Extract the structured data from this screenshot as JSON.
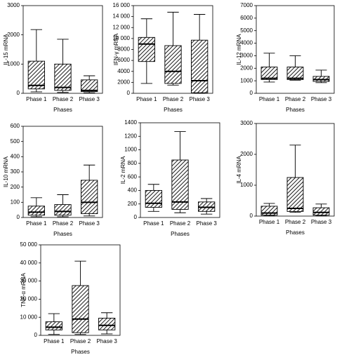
{
  "chart_data": [
    {
      "type": "box",
      "ylabel": "IL-15 mRNA",
      "xlabel": "Phases",
      "categories": [
        "Phase 1",
        "Phase 2",
        "Phase 3"
      ],
      "ylim": [
        0,
        3000
      ],
      "yticks": [
        0,
        1000,
        2000,
        3000
      ],
      "color": "#000000",
      "boxes": [
        {
          "low": 50,
          "q1": 150,
          "median": 270,
          "q3": 1100,
          "high": 2180
        },
        {
          "low": 30,
          "q1": 100,
          "median": 200,
          "q3": 1000,
          "high": 1850
        },
        {
          "low": 20,
          "q1": 60,
          "median": 100,
          "q3": 460,
          "high": 600
        }
      ]
    },
    {
      "type": "box",
      "ylabel": "IFN-γ mRNA",
      "xlabel": "Phases",
      "categories": [
        "Phase 1",
        "Phase 2",
        "Phase 3"
      ],
      "ylim": [
        0,
        16000
      ],
      "yticks": [
        0,
        2000,
        4000,
        6000,
        8000,
        {
          "value": 10000,
          "label": "10 000"
        },
        {
          "value": 12000,
          "label": "12 000"
        },
        {
          "value": 14000,
          "label": "14 000"
        },
        {
          "value": 16000,
          "label": "16 000"
        }
      ],
      "color": "#000000",
      "boxes": [
        {
          "low": 1800,
          "q1": 5800,
          "median": 9000,
          "q3": 10200,
          "high": 13600
        },
        {
          "low": 1500,
          "q1": 1800,
          "median": 4000,
          "q3": 8700,
          "high": 14800
        },
        {
          "low": 0,
          "q1": 100,
          "median": 2300,
          "q3": 9700,
          "high": 14400
        }
      ]
    },
    {
      "type": "box",
      "ylabel": "IL-12 mRNA",
      "xlabel": "Phases",
      "categories": [
        "Phase 1",
        "Phase 2",
        "Phase 3"
      ],
      "ylim": [
        0,
        7000
      ],
      "yticks": [
        0,
        1000,
        2000,
        3000,
        4000,
        5000,
        6000,
        7000
      ],
      "color": "#000000",
      "boxes": [
        {
          "low": 900,
          "q1": 1100,
          "median": 1200,
          "q3": 2100,
          "high": 3200
        },
        {
          "low": 1050,
          "q1": 1100,
          "median": 1200,
          "q3": 2100,
          "high": 3000
        },
        {
          "low": 850,
          "q1": 950,
          "median": 1100,
          "q3": 1350,
          "high": 1850
        }
      ]
    },
    {
      "type": "box",
      "ylabel": "IL-10 mRNA",
      "xlabel": "Phases",
      "categories": [
        "Phase 1",
        "Phase 2",
        "Phase 3"
      ],
      "ylim": [
        0,
        600
      ],
      "yticks": [
        0,
        100,
        200,
        300,
        400,
        500,
        600
      ],
      "color": "#000000",
      "boxes": [
        {
          "low": 5,
          "q1": 15,
          "median": 35,
          "q3": 75,
          "high": 130
        },
        {
          "low": 5,
          "q1": 15,
          "median": 40,
          "q3": 85,
          "high": 150
        },
        {
          "low": 10,
          "q1": 25,
          "median": 100,
          "q3": 245,
          "high": 345
        }
      ]
    },
    {
      "type": "box",
      "ylabel": "IL-2 mRNA",
      "xlabel": "Phases",
      "categories": [
        "Phase 1",
        "Phase 2",
        "Phase 3"
      ],
      "ylim": [
        0,
        1400
      ],
      "yticks": [
        0,
        200,
        400,
        600,
        800,
        1000,
        1200,
        1400
      ],
      "color": "#000000",
      "boxes": [
        {
          "low": 90,
          "q1": 150,
          "median": 210,
          "q3": 400,
          "high": 490
        },
        {
          "low": 70,
          "q1": 120,
          "median": 230,
          "q3": 850,
          "high": 1270
        },
        {
          "low": 50,
          "q1": 90,
          "median": 150,
          "q3": 230,
          "high": 280
        }
      ]
    },
    {
      "type": "box",
      "ylabel": "IL-4 mRNA",
      "xlabel": "Phases",
      "categories": [
        "Phase 1",
        "Phase 2",
        "Phase 3"
      ],
      "ylim": [
        0,
        3000
      ],
      "yticks": [
        0,
        1000,
        2000,
        3000
      ],
      "color": "#000000",
      "boxes": [
        {
          "low": 10,
          "q1": 30,
          "median": 100,
          "q3": 320,
          "high": 410
        },
        {
          "low": 120,
          "q1": 150,
          "median": 250,
          "q3": 1250,
          "high": 2300
        },
        {
          "low": 10,
          "q1": 30,
          "median": 120,
          "q3": 270,
          "high": 390
        }
      ]
    },
    {
      "type": "box",
      "ylabel": "TNF-α mRNA",
      "xlabel": "Phases",
      "categories": [
        "Phase 1",
        "Phase 2",
        "Phase 3"
      ],
      "ylim": [
        0,
        50000
      ],
      "yticks": [
        0,
        {
          "value": 10000,
          "label": "10 000"
        },
        {
          "value": 20000,
          "label": "20 000"
        },
        {
          "value": 30000,
          "label": "30 000"
        },
        {
          "value": 40000,
          "label": "40 000"
        },
        {
          "value": 50000,
          "label": "50 000"
        }
      ],
      "color": "#000000",
      "boxes": [
        {
          "low": 500,
          "q1": 3000,
          "median": 4500,
          "q3": 7500,
          "high": 12000
        },
        {
          "low": 500,
          "q1": 1500,
          "median": 9000,
          "q3": 27500,
          "high": 41000
        },
        {
          "low": 800,
          "q1": 3000,
          "median": 5500,
          "q3": 9500,
          "high": 12500
        }
      ]
    }
  ]
}
